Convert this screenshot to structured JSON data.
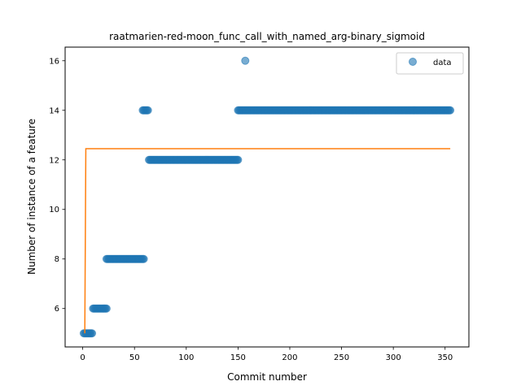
{
  "chart_data": {
    "type": "scatter",
    "title": "raatmarien-red-moon_func_call_with_named_arg-binary_sigmoid",
    "xlabel": "Commit number",
    "ylabel": "Number of instance of a feature",
    "xlim": [
      -17,
      373
    ],
    "ylim": [
      4.45,
      16.55
    ],
    "xticks": [
      0,
      50,
      100,
      150,
      200,
      250,
      300,
      350
    ],
    "yticks": [
      6,
      8,
      10,
      12,
      14,
      16
    ],
    "legend": {
      "position": "top-right",
      "entries": [
        "data"
      ]
    },
    "colors": {
      "data": "#1f77b4",
      "fit": "#ff7f0e"
    },
    "segments": [
      {
        "x_start": 1,
        "x_end": 9,
        "y": 5
      },
      {
        "x_start": 10,
        "x_end": 23,
        "y": 6
      },
      {
        "x_start": 23,
        "x_end": 59,
        "y": 8
      },
      {
        "x_start": 58,
        "x_end": 63,
        "y": 14
      },
      {
        "x_start": 64,
        "x_end": 150,
        "y": 12
      },
      {
        "x_start": 150,
        "x_end": 355,
        "y": 14
      }
    ],
    "outliers": [
      {
        "x": 157,
        "y": 16
      }
    ],
    "series": [
      {
        "name": "",
        "type": "line",
        "points": [
          [
            2,
            5
          ],
          [
            3,
            12.45
          ],
          [
            355,
            12.45
          ]
        ]
      }
    ]
  }
}
